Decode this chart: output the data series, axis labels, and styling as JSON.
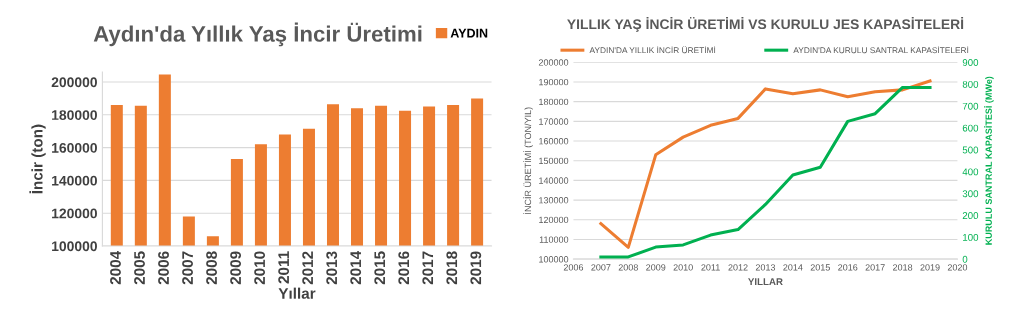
{
  "chart_data": [
    {
      "type": "bar",
      "title": "Aydın'da Yıllık Yaş İncir Üretimi",
      "xlabel": "Yıllar",
      "ylabel": "İncir (ton)",
      "categories": [
        "2004",
        "2005",
        "2006",
        "2007",
        "2008",
        "2009",
        "2010",
        "2011",
        "2012",
        "2013",
        "2014",
        "2015",
        "2016",
        "2017",
        "2018",
        "2019"
      ],
      "series": [
        {
          "name": "AYDIN",
          "color": "#ed7d31",
          "values": [
            186000,
            185500,
            204500,
            118000,
            106000,
            153000,
            162000,
            168000,
            171500,
            186500,
            184000,
            185500,
            182500,
            185000,
            186000,
            190000
          ]
        }
      ],
      "ylim": [
        100000,
        206000
      ],
      "yticks": [
        100000,
        120000,
        140000,
        160000,
        180000,
        200000
      ],
      "grid": "y",
      "legend": "top right"
    },
    {
      "type": "line",
      "title": "YILLIK YAŞ İNCİR ÜRETİMİ VS KURULU JES KAPASİTELERİ",
      "xlabel": "YILLAR",
      "ylabel": "İNCİR ÜRETİMİ (TON/YIL)",
      "y2label": "KURULU SANTRAL KAPASİTESİ (MWe)",
      "x": [
        2007,
        2008,
        2009,
        2010,
        2011,
        2012,
        2013,
        2014,
        2015,
        2016,
        2017,
        2018,
        2019
      ],
      "series": [
        {
          "name": "AYDIN'DA YILLIK İNCİR ÜRETİMİ",
          "color": "#ed7d31",
          "values": [
            118000,
            106000,
            153000,
            162000,
            168000,
            171500,
            186500,
            184000,
            186000,
            182500,
            185000,
            186000,
            190500
          ]
        },
        {
          "name": "AYDIN'DA KURULU SANTRAL KAPASİTELERİ",
          "color": "#00b050",
          "axis": "y2",
          "values": [
            10,
            10,
            55,
            65,
            110,
            135,
            250,
            385,
            420,
            630,
            665,
            785,
            785
          ]
        }
      ],
      "xlim": [
        2006,
        2020
      ],
      "xticks": [
        2006,
        2007,
        2008,
        2009,
        2010,
        2011,
        2012,
        2013,
        2014,
        2015,
        2016,
        2017,
        2018,
        2019,
        2020
      ],
      "ylim": [
        100000,
        200000
      ],
      "yticks": [
        100000,
        110000,
        120000,
        130000,
        140000,
        150000,
        160000,
        170000,
        180000,
        190000,
        200000
      ],
      "y2lim": [
        0,
        900
      ],
      "y2ticks": [
        0,
        100,
        200,
        300,
        400,
        500,
        600,
        700,
        800,
        900
      ],
      "grid": "y",
      "legend": "top",
      "line_style": "solid",
      "marker": "none"
    }
  ]
}
